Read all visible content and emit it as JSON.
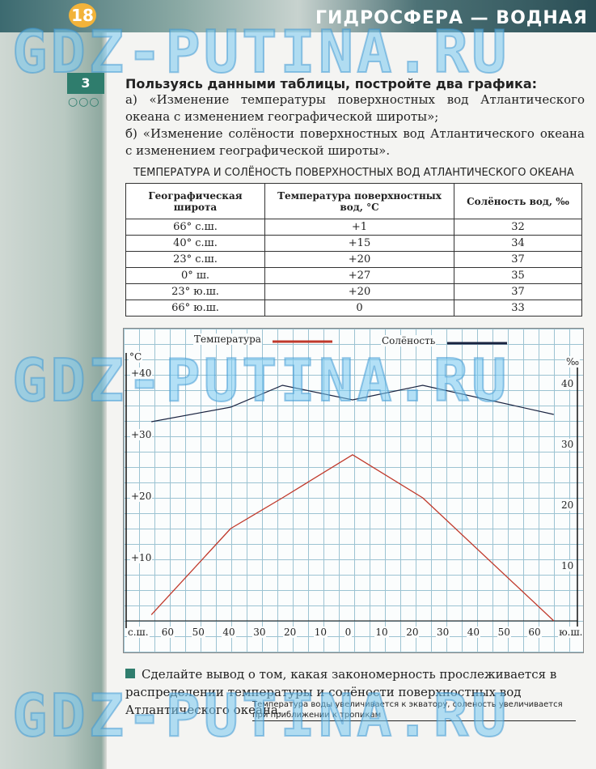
{
  "header": {
    "page_number": "18",
    "chapter": "ГИДРОСФЕРА — ВОДНАЯ"
  },
  "watermark": "GDZ-PUTINA.RU",
  "task": {
    "number": "3",
    "heading": "Пользуясь данными таблицы, постройте два графика:",
    "a": "а) «Изменение температуры поверхностных вод Атлантического океана с изменением географической широты»;",
    "b": "б) «Изменение солёности поверхностных вод Атлантического океана с изменением географической широты»."
  },
  "table": {
    "title": "ТЕМПЕРАТУРА И СОЛЁНОСТЬ ПОВЕРХНОСТНЫХ ВОД АТЛАНТИЧЕСКОГО ОКЕАНА",
    "headers": [
      "Географическая широта",
      "Температура поверхностных вод, °С",
      "Солёность вод, ‰"
    ],
    "rows": [
      [
        "66° с.ш.",
        "+1",
        "32"
      ],
      [
        "40° с.ш.",
        "+15",
        "34"
      ],
      [
        "23° с.ш.",
        "+20",
        "37"
      ],
      [
        "0° ш.",
        "+27",
        "35"
      ],
      [
        "23° ю.ш.",
        "+20",
        "37"
      ],
      [
        "66° ю.ш.",
        "0",
        "33"
      ]
    ]
  },
  "chart_data": {
    "type": "line",
    "legend": {
      "temperature": "Температура",
      "salinity": "Солёность"
    },
    "colors": {
      "temperature": "#c0392b",
      "salinity": "#1a2340"
    },
    "left_axis": {
      "unit": "°С",
      "ticks": [
        "+10",
        "+20",
        "+30",
        "+40"
      ],
      "ylim": [
        0,
        45
      ]
    },
    "right_axis": {
      "unit": "‰",
      "ticks": [
        "10",
        "20",
        "30",
        "40"
      ],
      "ylim": [
        0,
        45
      ]
    },
    "x_ticks": [
      "с.ш.",
      "60",
      "50",
      "40",
      "30",
      "20",
      "10",
      "0",
      "10",
      "20",
      "30",
      "40",
      "50",
      "60",
      "ю.ш."
    ],
    "x": [
      66,
      40,
      23,
      0,
      -23,
      -66
    ],
    "series": [
      {
        "name": "Температура",
        "values": [
          1,
          15,
          20,
          27,
          20,
          0
        ]
      },
      {
        "name": "Солёность",
        "values": [
          32,
          34,
          37,
          35,
          37,
          33
        ]
      }
    ],
    "grid": true
  },
  "conclusion": {
    "prompt": "Сделайте вывод о том, какая закономерность прослеживается в распределении температуры и солёности поверхностных вод Атлантического океана.",
    "answer": "Температура воды увеличивается к экватору, соленость увеличивается при приближении к тропикам"
  }
}
